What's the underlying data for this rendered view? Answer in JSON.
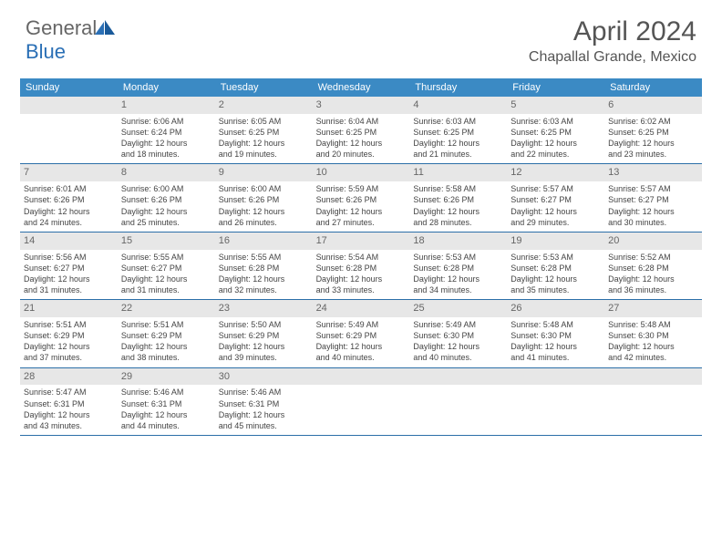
{
  "brand": {
    "general": "General",
    "blue": "Blue"
  },
  "title": "April 2024",
  "location": "Chapallal Grande, Mexico",
  "colors": {
    "header_bg": "#3b8ac4",
    "border": "#2b6fa8",
    "daynum_bg": "#e7e7e7",
    "text": "#444444",
    "title_text": "#555555"
  },
  "day_names": [
    "Sunday",
    "Monday",
    "Tuesday",
    "Wednesday",
    "Thursday",
    "Friday",
    "Saturday"
  ],
  "weeks": [
    [
      null,
      {
        "n": "1",
        "sr": "Sunrise: 6:06 AM",
        "ss": "Sunset: 6:24 PM",
        "d1": "Daylight: 12 hours",
        "d2": "and 18 minutes."
      },
      {
        "n": "2",
        "sr": "Sunrise: 6:05 AM",
        "ss": "Sunset: 6:25 PM",
        "d1": "Daylight: 12 hours",
        "d2": "and 19 minutes."
      },
      {
        "n": "3",
        "sr": "Sunrise: 6:04 AM",
        "ss": "Sunset: 6:25 PM",
        "d1": "Daylight: 12 hours",
        "d2": "and 20 minutes."
      },
      {
        "n": "4",
        "sr": "Sunrise: 6:03 AM",
        "ss": "Sunset: 6:25 PM",
        "d1": "Daylight: 12 hours",
        "d2": "and 21 minutes."
      },
      {
        "n": "5",
        "sr": "Sunrise: 6:03 AM",
        "ss": "Sunset: 6:25 PM",
        "d1": "Daylight: 12 hours",
        "d2": "and 22 minutes."
      },
      {
        "n": "6",
        "sr": "Sunrise: 6:02 AM",
        "ss": "Sunset: 6:25 PM",
        "d1": "Daylight: 12 hours",
        "d2": "and 23 minutes."
      }
    ],
    [
      {
        "n": "7",
        "sr": "Sunrise: 6:01 AM",
        "ss": "Sunset: 6:26 PM",
        "d1": "Daylight: 12 hours",
        "d2": "and 24 minutes."
      },
      {
        "n": "8",
        "sr": "Sunrise: 6:00 AM",
        "ss": "Sunset: 6:26 PM",
        "d1": "Daylight: 12 hours",
        "d2": "and 25 minutes."
      },
      {
        "n": "9",
        "sr": "Sunrise: 6:00 AM",
        "ss": "Sunset: 6:26 PM",
        "d1": "Daylight: 12 hours",
        "d2": "and 26 minutes."
      },
      {
        "n": "10",
        "sr": "Sunrise: 5:59 AM",
        "ss": "Sunset: 6:26 PM",
        "d1": "Daylight: 12 hours",
        "d2": "and 27 minutes."
      },
      {
        "n": "11",
        "sr": "Sunrise: 5:58 AM",
        "ss": "Sunset: 6:26 PM",
        "d1": "Daylight: 12 hours",
        "d2": "and 28 minutes."
      },
      {
        "n": "12",
        "sr": "Sunrise: 5:57 AM",
        "ss": "Sunset: 6:27 PM",
        "d1": "Daylight: 12 hours",
        "d2": "and 29 minutes."
      },
      {
        "n": "13",
        "sr": "Sunrise: 5:57 AM",
        "ss": "Sunset: 6:27 PM",
        "d1": "Daylight: 12 hours",
        "d2": "and 30 minutes."
      }
    ],
    [
      {
        "n": "14",
        "sr": "Sunrise: 5:56 AM",
        "ss": "Sunset: 6:27 PM",
        "d1": "Daylight: 12 hours",
        "d2": "and 31 minutes."
      },
      {
        "n": "15",
        "sr": "Sunrise: 5:55 AM",
        "ss": "Sunset: 6:27 PM",
        "d1": "Daylight: 12 hours",
        "d2": "and 31 minutes."
      },
      {
        "n": "16",
        "sr": "Sunrise: 5:55 AM",
        "ss": "Sunset: 6:28 PM",
        "d1": "Daylight: 12 hours",
        "d2": "and 32 minutes."
      },
      {
        "n": "17",
        "sr": "Sunrise: 5:54 AM",
        "ss": "Sunset: 6:28 PM",
        "d1": "Daylight: 12 hours",
        "d2": "and 33 minutes."
      },
      {
        "n": "18",
        "sr": "Sunrise: 5:53 AM",
        "ss": "Sunset: 6:28 PM",
        "d1": "Daylight: 12 hours",
        "d2": "and 34 minutes."
      },
      {
        "n": "19",
        "sr": "Sunrise: 5:53 AM",
        "ss": "Sunset: 6:28 PM",
        "d1": "Daylight: 12 hours",
        "d2": "and 35 minutes."
      },
      {
        "n": "20",
        "sr": "Sunrise: 5:52 AM",
        "ss": "Sunset: 6:28 PM",
        "d1": "Daylight: 12 hours",
        "d2": "and 36 minutes."
      }
    ],
    [
      {
        "n": "21",
        "sr": "Sunrise: 5:51 AM",
        "ss": "Sunset: 6:29 PM",
        "d1": "Daylight: 12 hours",
        "d2": "and 37 minutes."
      },
      {
        "n": "22",
        "sr": "Sunrise: 5:51 AM",
        "ss": "Sunset: 6:29 PM",
        "d1": "Daylight: 12 hours",
        "d2": "and 38 minutes."
      },
      {
        "n": "23",
        "sr": "Sunrise: 5:50 AM",
        "ss": "Sunset: 6:29 PM",
        "d1": "Daylight: 12 hours",
        "d2": "and 39 minutes."
      },
      {
        "n": "24",
        "sr": "Sunrise: 5:49 AM",
        "ss": "Sunset: 6:29 PM",
        "d1": "Daylight: 12 hours",
        "d2": "and 40 minutes."
      },
      {
        "n": "25",
        "sr": "Sunrise: 5:49 AM",
        "ss": "Sunset: 6:30 PM",
        "d1": "Daylight: 12 hours",
        "d2": "and 40 minutes."
      },
      {
        "n": "26",
        "sr": "Sunrise: 5:48 AM",
        "ss": "Sunset: 6:30 PM",
        "d1": "Daylight: 12 hours",
        "d2": "and 41 minutes."
      },
      {
        "n": "27",
        "sr": "Sunrise: 5:48 AM",
        "ss": "Sunset: 6:30 PM",
        "d1": "Daylight: 12 hours",
        "d2": "and 42 minutes."
      }
    ],
    [
      {
        "n": "28",
        "sr": "Sunrise: 5:47 AM",
        "ss": "Sunset: 6:31 PM",
        "d1": "Daylight: 12 hours",
        "d2": "and 43 minutes."
      },
      {
        "n": "29",
        "sr": "Sunrise: 5:46 AM",
        "ss": "Sunset: 6:31 PM",
        "d1": "Daylight: 12 hours",
        "d2": "and 44 minutes."
      },
      {
        "n": "30",
        "sr": "Sunrise: 5:46 AM",
        "ss": "Sunset: 6:31 PM",
        "d1": "Daylight: 12 hours",
        "d2": "and 45 minutes."
      },
      null,
      null,
      null,
      null
    ]
  ]
}
